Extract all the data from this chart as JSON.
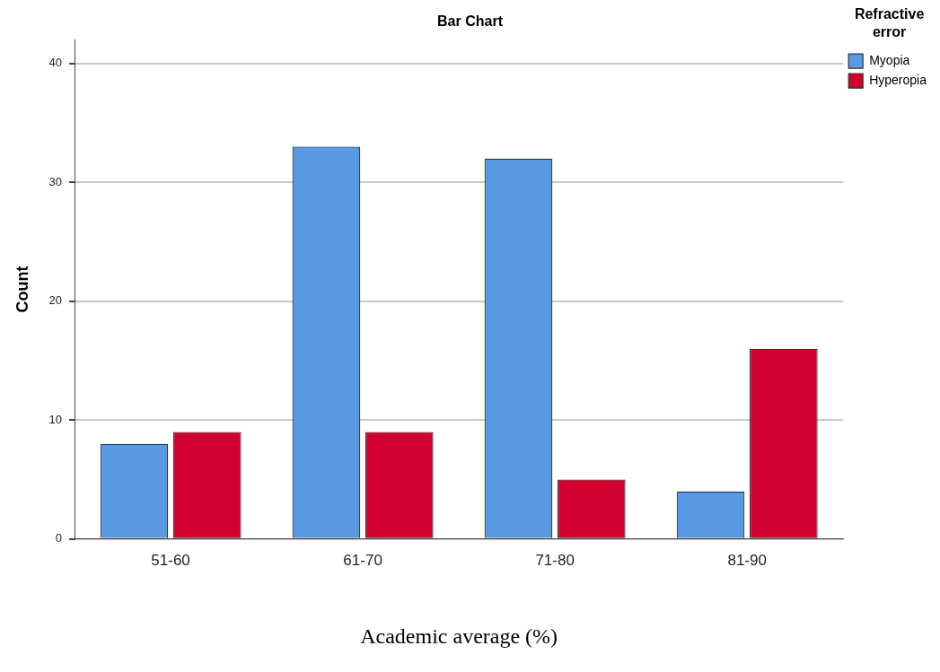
{
  "chart_data": {
    "type": "bar",
    "title": "Bar Chart",
    "xlabel": "Academic average (%)",
    "ylabel": "Count",
    "legend_title": "Refractive error",
    "categories": [
      "51-60",
      "61-70",
      "71-80",
      "81-90"
    ],
    "series": [
      {
        "name": "Myopia",
        "color": "#5899e2",
        "values": [
          8,
          33,
          32,
          4
        ]
      },
      {
        "name": "Hyperopia",
        "color": "#d2002e",
        "values": [
          9,
          9,
          5,
          16
        ]
      }
    ],
    "ylim": [
      0,
      42
    ],
    "yticks": [
      0,
      10,
      20,
      30,
      40
    ],
    "grid": "y",
    "legend": "top right"
  }
}
